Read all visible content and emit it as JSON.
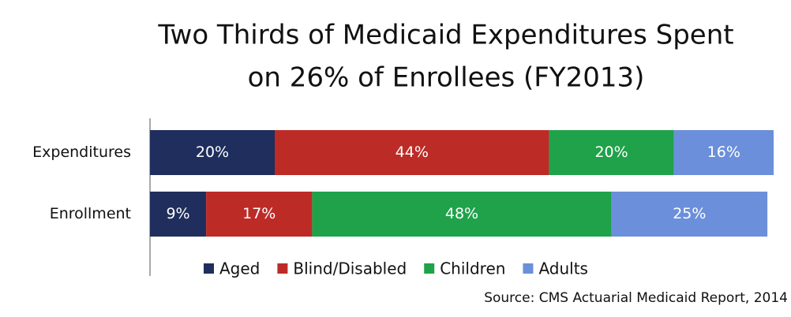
{
  "chart_data": {
    "type": "stacked-bar-horizontal",
    "title": [
      "Two Thirds of Medicaid Expenditures Spent",
      "on 26% of Enrollees (FY2013)"
    ],
    "categories": [
      "Expenditures",
      "Enrollment"
    ],
    "series": [
      {
        "name": "Aged",
        "color": "#1f2e5c",
        "values": [
          20,
          9
        ],
        "value_labels": [
          "20%",
          "9%"
        ]
      },
      {
        "name": "Blind/Disabled",
        "color": "#bd2b27",
        "values": [
          44,
          17
        ],
        "value_labels": [
          "44%",
          "17%"
        ]
      },
      {
        "name": "Children",
        "color": "#1fa24a",
        "values": [
          20,
          48
        ],
        "value_labels": [
          "20%",
          "48%"
        ]
      },
      {
        "name": "Adults",
        "color": "#6b8fda",
        "values": [
          16,
          25
        ],
        "value_labels": [
          "16%",
          "25%"
        ]
      }
    ],
    "xlim": [
      0,
      100
    ],
    "source": "Source: CMS Actuarial Medicaid Report, 2014"
  }
}
